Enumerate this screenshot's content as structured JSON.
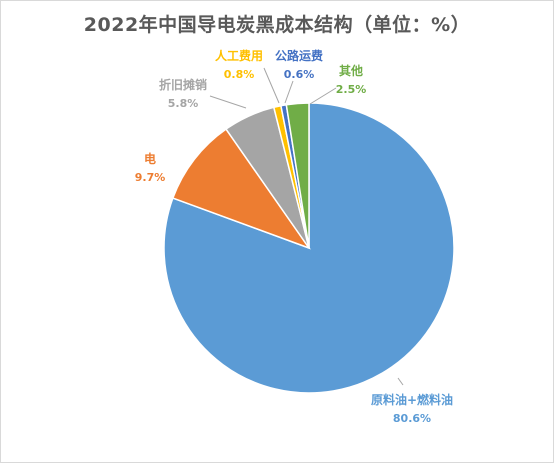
{
  "chart_data": {
    "type": "pie",
    "title": "2022年中国导电炭黑成本结构（单位：%）",
    "categories": [
      "原料油+燃料油",
      "电",
      "折旧摊销",
      "人工费用",
      "公路运费",
      "其他"
    ],
    "values": [
      80.6,
      9.7,
      5.8,
      0.8,
      0.6,
      2.5
    ],
    "value_labels": [
      "80.6%",
      "9.7%",
      "5.8%",
      "0.8%",
      "0.6%",
      "2.5%"
    ],
    "colors": [
      "#5b9bd5",
      "#ed7d31",
      "#a5a5a5",
      "#ffc000",
      "#4472c4",
      "#70ad47"
    ],
    "legend": "none",
    "data_labels": "outside-with-leader-lines"
  }
}
